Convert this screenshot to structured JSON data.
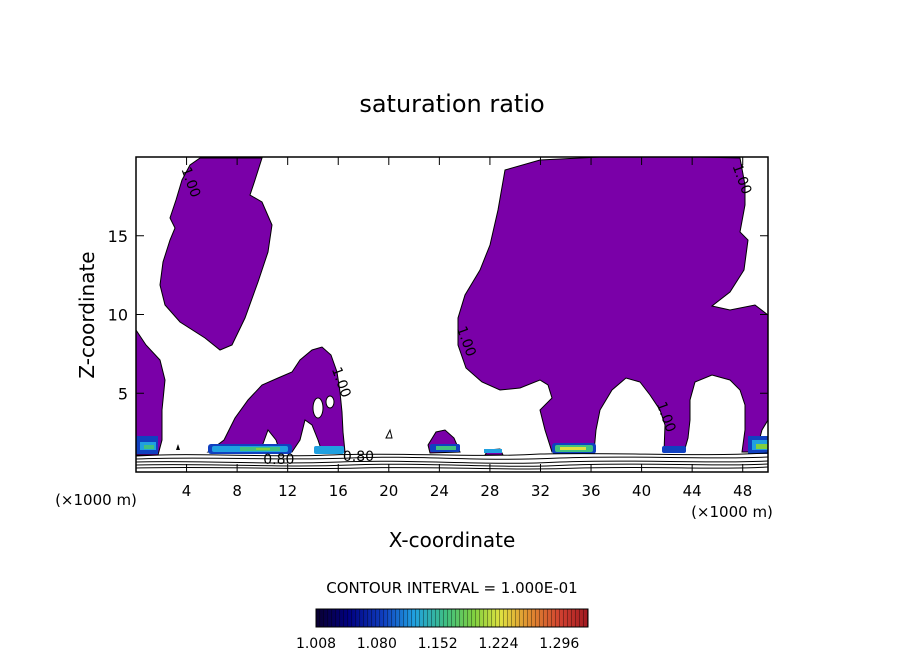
{
  "chart_data": {
    "type": "heatmap",
    "title": "saturation ratio",
    "xlabel": "X-coordinate",
    "ylabel": "Z-coordinate",
    "x_unit_label": "(×1000 m)",
    "x_unit_label_right": "(×1000 m)",
    "xlim": [
      0,
      50
    ],
    "ylim": [
      0,
      20
    ],
    "x_ticks": [
      4,
      8,
      12,
      16,
      20,
      24,
      28,
      32,
      36,
      40,
      44,
      48
    ],
    "y_ticks": [
      5,
      10,
      15
    ],
    "contour_interval_text": "CONTOUR INTERVAL = 1.000E-01",
    "contour_labels": [
      {
        "text": "1.00",
        "x": 4.0,
        "y": 18.3
      },
      {
        "text": "1.00",
        "x": 15.9,
        "y": 5.6
      },
      {
        "text": "1.00",
        "x": 25.8,
        "y": 8.2
      },
      {
        "text": "1.00",
        "x": 41.6,
        "y": 3.4
      },
      {
        "text": "1.00",
        "x": 47.6,
        "y": 18.5
      },
      {
        "text": "0.80",
        "x": 11.3,
        "y": 0.5
      },
      {
        "text": "0.80",
        "x": 17.6,
        "y": 0.7
      }
    ],
    "colorbar": {
      "min": 1.008,
      "max": 1.33,
      "tick_labels": [
        "1.008",
        "1.080",
        "1.152",
        "1.224",
        "1.296"
      ],
      "colors": [
        "#0a0030",
        "#000080",
        "#1040c0",
        "#20a0e0",
        "#40c080",
        "#80d040",
        "#e0e040",
        "#e09030",
        "#d04030",
        "#a01820"
      ]
    },
    "fill_color_saturated": "#7a00a8",
    "regions_saturated": [
      "upper-left column x 2–10 km, z 8–20 km",
      "left edge x 0–1.5 km, z 1–9 km",
      "low cloud x 6–16 km, z 1–8 km",
      "small cells near x 23–26 km, z 1–3 km",
      "large cloud x 25–50 km, z 1–20 km"
    ]
  }
}
